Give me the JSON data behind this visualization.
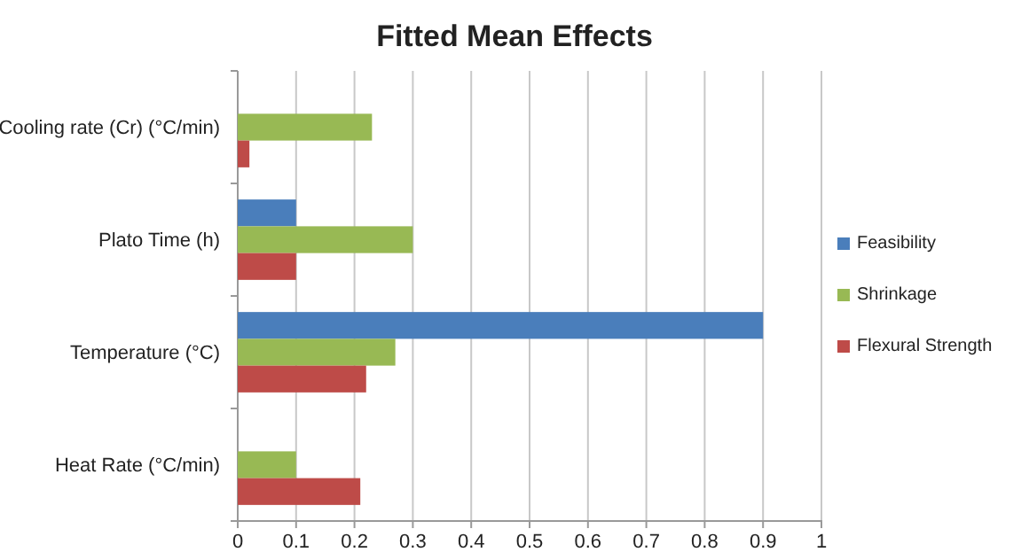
{
  "chart_data": {
    "type": "bar",
    "orientation": "horizontal",
    "title": "Fitted Mean Effects",
    "categories": [
      "Cooling rate (Cr)  (°C/min)",
      "Plato Time (h)",
      "Temperature (°C)",
      "Heat Rate (°C/min)"
    ],
    "series": [
      {
        "name": "Feasibility",
        "color": "#4a7ebb",
        "values": [
          null,
          0.1,
          0.9,
          null
        ]
      },
      {
        "name": "Shrinkage",
        "color": "#98b954",
        "values": [
          0.23,
          0.3,
          0.27,
          0.1
        ]
      },
      {
        "name": "Flexural Strength",
        "color": "#be4b48",
        "values": [
          0.02,
          0.1,
          0.22,
          0.21
        ]
      }
    ],
    "xlim": [
      0,
      1
    ],
    "xticks": [
      0,
      0.1,
      0.2,
      0.3,
      0.4,
      0.5,
      0.6,
      0.7,
      0.8,
      0.9,
      1
    ],
    "grid": "x",
    "legend": "right"
  }
}
